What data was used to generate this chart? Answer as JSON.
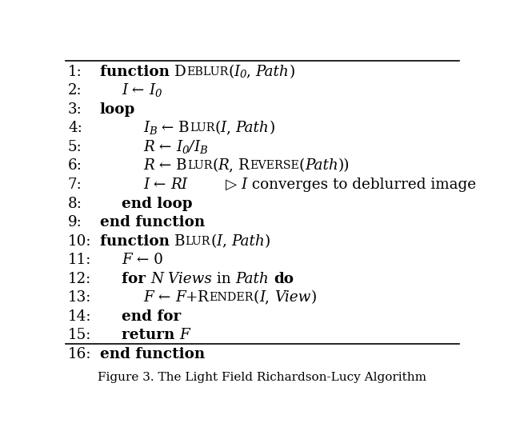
{
  "title": "Figure 3. The Light Field Richardson-Lucy Algorithm",
  "bg_color": "#ffffff",
  "text_color": "#000000",
  "figsize": [
    6.4,
    5.44
  ],
  "dpi": 100,
  "lines": [
    {
      "num": "1:",
      "indent": 0,
      "parts": [
        {
          "text": "function ",
          "style": "bold"
        },
        {
          "text": "D",
          "style": "sc"
        },
        {
          "text": "EBLUR",
          "style": "sc_lower"
        },
        {
          "text": "(",
          "style": "normal"
        },
        {
          "text": "I",
          "style": "italic"
        },
        {
          "text": "0",
          "style": "subscript"
        },
        {
          "text": ", ",
          "style": "normal"
        },
        {
          "text": "Path",
          "style": "italic"
        },
        {
          "text": ")",
          "style": "normal"
        }
      ]
    },
    {
      "num": "2:",
      "indent": 1,
      "parts": [
        {
          "text": "I",
          "style": "italic"
        },
        {
          "text": " ← ",
          "style": "normal"
        },
        {
          "text": "I",
          "style": "italic"
        },
        {
          "text": "0",
          "style": "subscript"
        }
      ]
    },
    {
      "num": "3:",
      "indent": 0,
      "parts": [
        {
          "text": "loop",
          "style": "bold"
        }
      ]
    },
    {
      "num": "4:",
      "indent": 2,
      "parts": [
        {
          "text": "I",
          "style": "italic"
        },
        {
          "text": "B",
          "style": "subscript"
        },
        {
          "text": " ← ",
          "style": "normal"
        },
        {
          "text": "B",
          "style": "sc"
        },
        {
          "text": "LUR",
          "style": "sc_lower"
        },
        {
          "text": "(",
          "style": "normal"
        },
        {
          "text": "I",
          "style": "italic"
        },
        {
          "text": ", ",
          "style": "normal"
        },
        {
          "text": "Path",
          "style": "italic"
        },
        {
          "text": ")",
          "style": "normal"
        }
      ]
    },
    {
      "num": "5:",
      "indent": 2,
      "parts": [
        {
          "text": "R",
          "style": "italic"
        },
        {
          "text": " ← ",
          "style": "normal"
        },
        {
          "text": "I",
          "style": "italic"
        },
        {
          "text": "0",
          "style": "subscript"
        },
        {
          "text": "/",
          "style": "italic"
        },
        {
          "text": "I",
          "style": "italic"
        },
        {
          "text": "B",
          "style": "subscript"
        }
      ]
    },
    {
      "num": "6:",
      "indent": 2,
      "parts": [
        {
          "text": "R",
          "style": "italic"
        },
        {
          "text": " ← ",
          "style": "normal"
        },
        {
          "text": "B",
          "style": "sc"
        },
        {
          "text": "LUR",
          "style": "sc_lower"
        },
        {
          "text": "(",
          "style": "normal"
        },
        {
          "text": "R",
          "style": "italic"
        },
        {
          "text": ", ",
          "style": "normal"
        },
        {
          "text": "R",
          "style": "sc"
        },
        {
          "text": "EVERSE",
          "style": "sc_lower"
        },
        {
          "text": "(",
          "style": "normal"
        },
        {
          "text": "Path",
          "style": "italic"
        },
        {
          "text": "))",
          "style": "normal"
        }
      ]
    },
    {
      "num": "7:",
      "indent": 2,
      "parts": [
        {
          "text": "I",
          "style": "italic"
        },
        {
          "text": " ← ",
          "style": "normal"
        },
        {
          "text": "RI",
          "style": "italic"
        },
        {
          "text": "        ▷ ",
          "style": "normal"
        },
        {
          "text": "I",
          "style": "italic"
        },
        {
          "text": " converges to deblurred image",
          "style": "normal"
        }
      ]
    },
    {
      "num": "8:",
      "indent": 1,
      "parts": [
        {
          "text": "end loop",
          "style": "bold"
        }
      ]
    },
    {
      "num": "9:",
      "indent": 0,
      "parts": [
        {
          "text": "end function",
          "style": "bold"
        }
      ]
    },
    {
      "num": "10:",
      "indent": 0,
      "parts": [
        {
          "text": "function ",
          "style": "bold"
        },
        {
          "text": "B",
          "style": "sc"
        },
        {
          "text": "LUR",
          "style": "sc_lower"
        },
        {
          "text": "(",
          "style": "normal"
        },
        {
          "text": "I",
          "style": "italic"
        },
        {
          "text": ", ",
          "style": "normal"
        },
        {
          "text": "Path",
          "style": "italic"
        },
        {
          "text": ")",
          "style": "normal"
        }
      ]
    },
    {
      "num": "11:",
      "indent": 1,
      "parts": [
        {
          "text": "F",
          "style": "italic"
        },
        {
          "text": " ← 0",
          "style": "normal"
        }
      ]
    },
    {
      "num": "12:",
      "indent": 1,
      "parts": [
        {
          "text": "for ",
          "style": "bold"
        },
        {
          "text": "N Views",
          "style": "italic"
        },
        {
          "text": " in ",
          "style": "normal"
        },
        {
          "text": "Path",
          "style": "italic"
        },
        {
          "text": " ",
          "style": "normal"
        },
        {
          "text": "do",
          "style": "bold"
        }
      ]
    },
    {
      "num": "13:",
      "indent": 2,
      "parts": [
        {
          "text": "F",
          "style": "italic"
        },
        {
          "text": " ← ",
          "style": "normal"
        },
        {
          "text": "F",
          "style": "italic"
        },
        {
          "text": "+",
          "style": "normal"
        },
        {
          "text": "R",
          "style": "sc"
        },
        {
          "text": "ENDER",
          "style": "sc_lower"
        },
        {
          "text": "(",
          "style": "normal"
        },
        {
          "text": "I",
          "style": "italic"
        },
        {
          "text": ", ",
          "style": "normal"
        },
        {
          "text": "View",
          "style": "italic"
        },
        {
          "text": ")",
          "style": "normal"
        }
      ]
    },
    {
      "num": "14:",
      "indent": 1,
      "parts": [
        {
          "text": "end for",
          "style": "bold"
        }
      ]
    },
    {
      "num": "15:",
      "indent": 1,
      "parts": [
        {
          "text": "return ",
          "style": "bold"
        },
        {
          "text": "F",
          "style": "italic"
        }
      ]
    },
    {
      "num": "16:",
      "indent": 0,
      "parts": [
        {
          "text": "end function",
          "style": "bold"
        }
      ]
    }
  ]
}
